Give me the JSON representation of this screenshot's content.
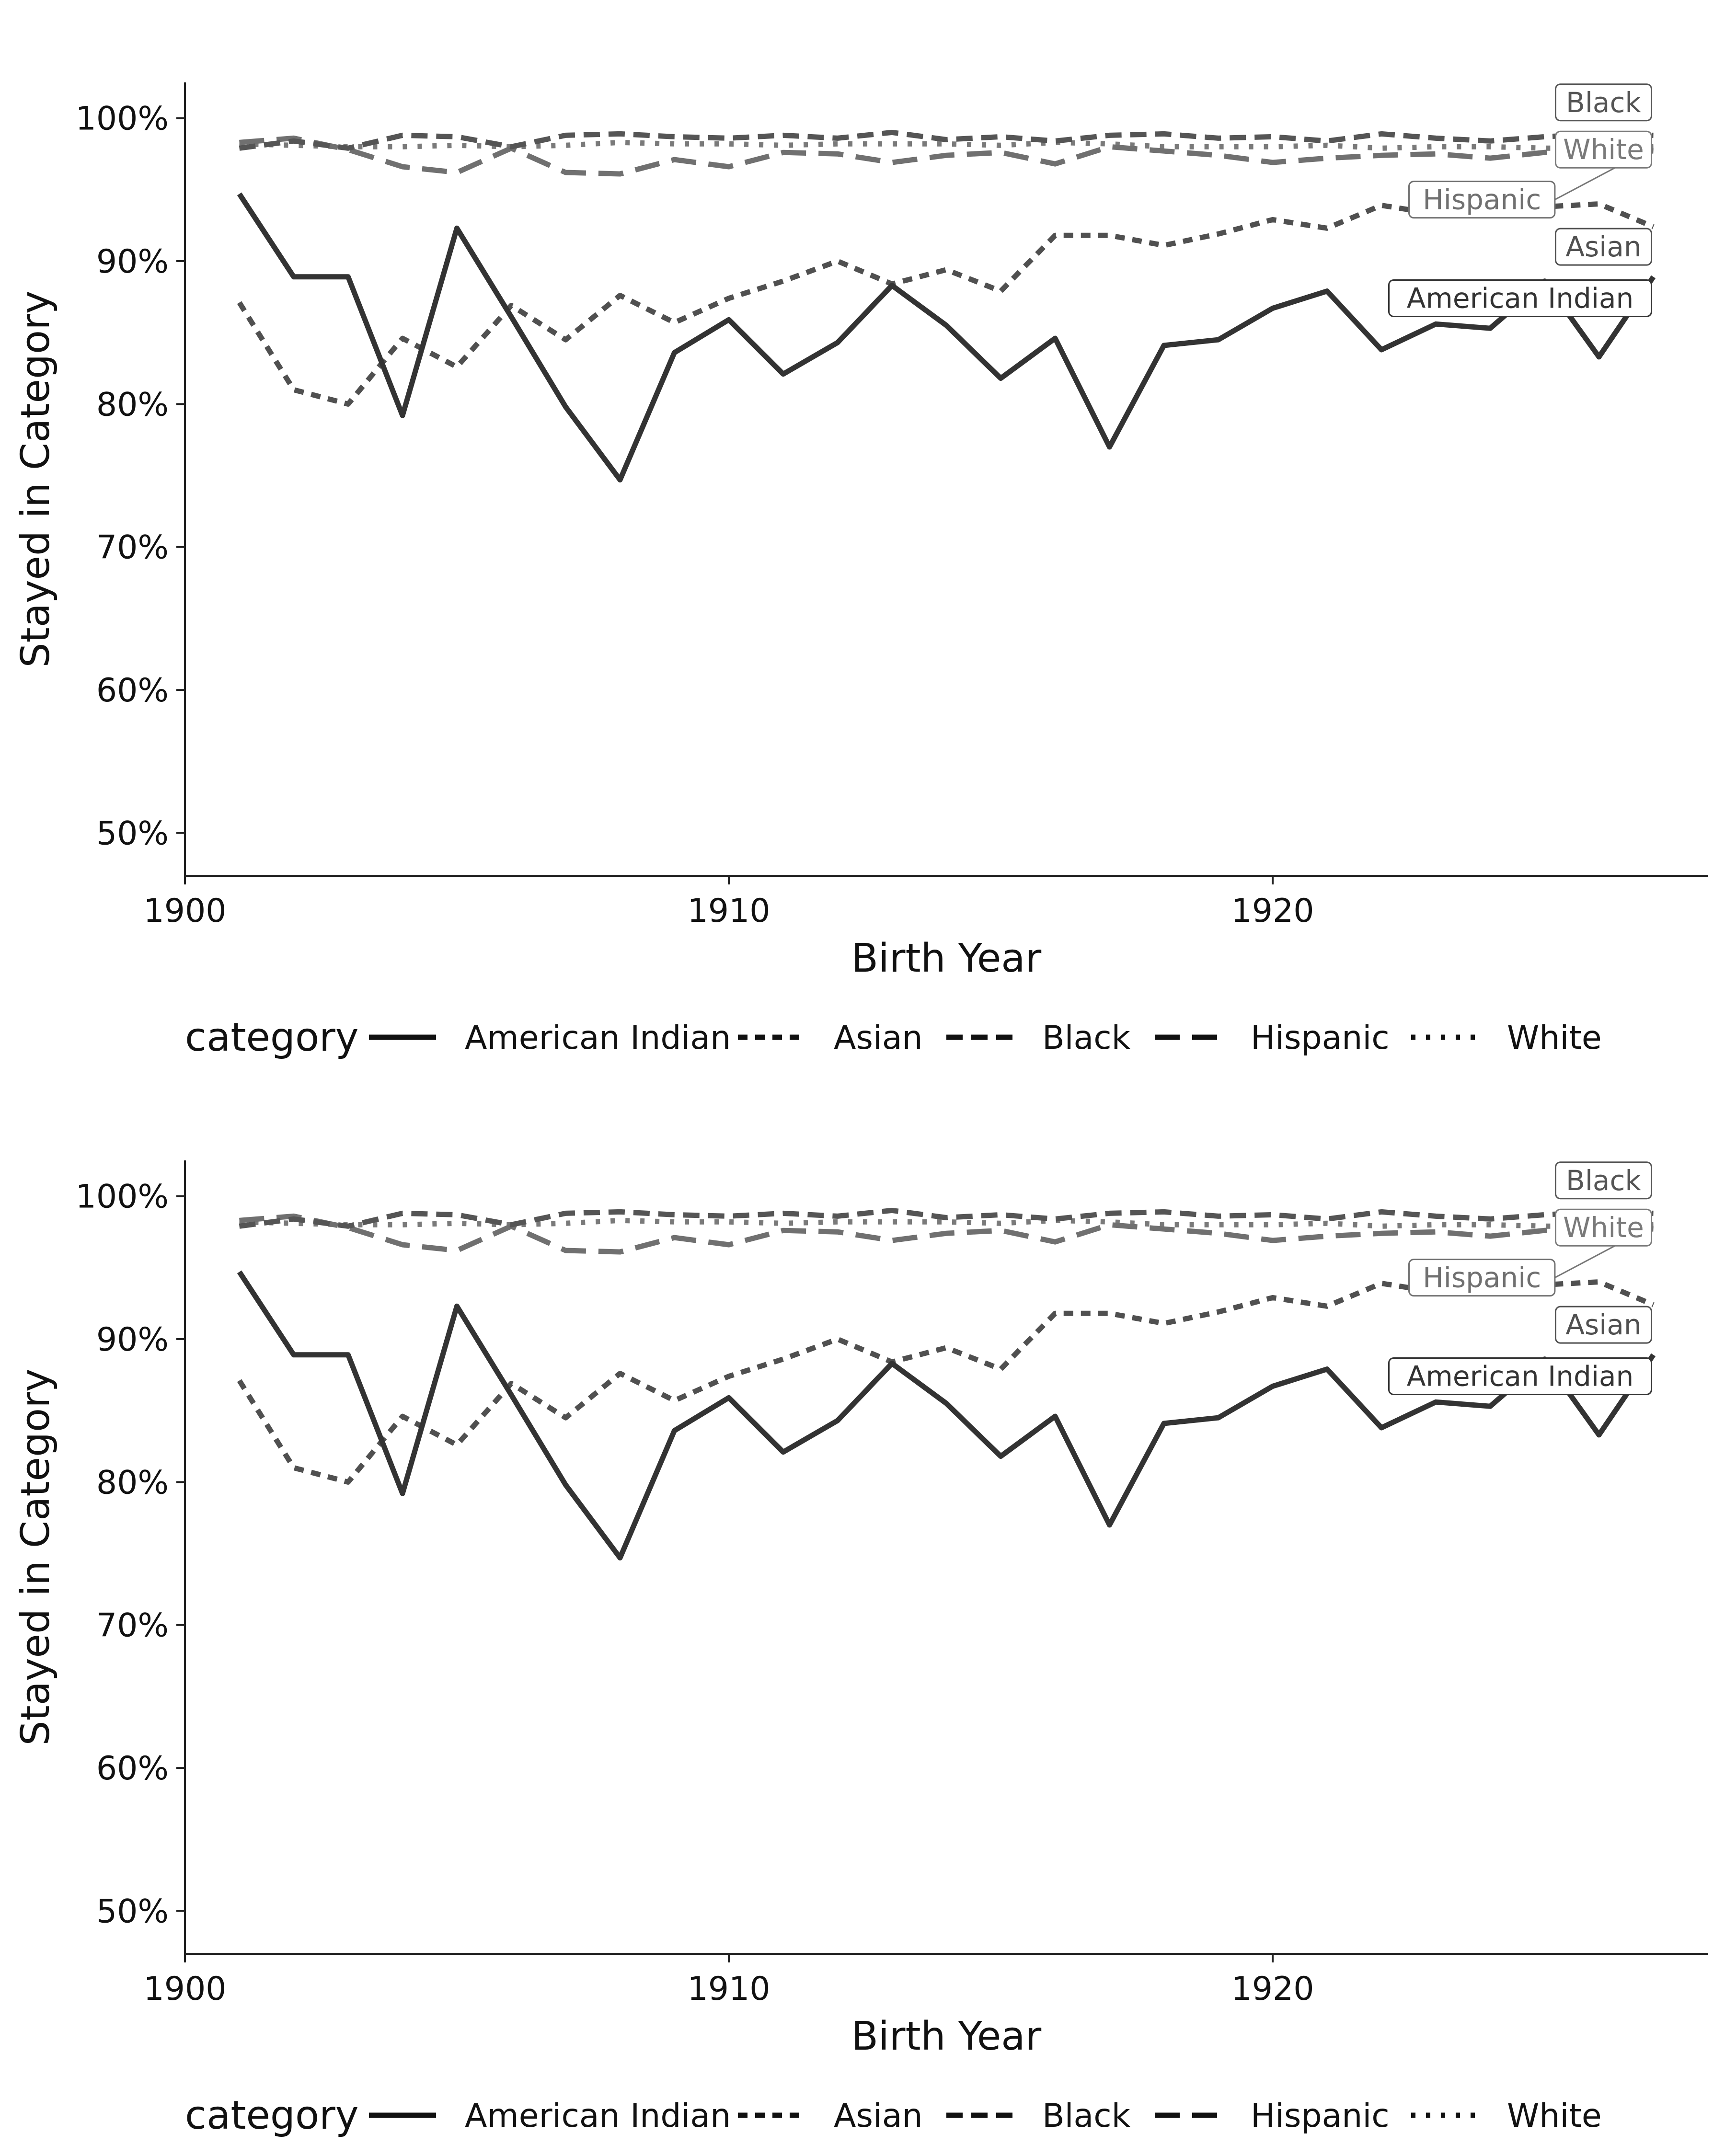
{
  "chart_data": [
    {
      "type": "line",
      "title": "",
      "xlabel": "Birth Year",
      "ylabel": "Stayed in Category",
      "xlim": [
        1900,
        1928
      ],
      "ylim": [
        47,
        102.5
      ],
      "x_ticks": [
        1900,
        1910,
        1920
      ],
      "x_tick_labels": [
        "1900",
        "1910",
        "1920"
      ],
      "y_ticks": [
        50,
        60,
        70,
        80,
        90,
        100
      ],
      "y_tick_labels": [
        "50%",
        "60%",
        "70%",
        "80%",
        "90%",
        "100%"
      ],
      "grid": false,
      "legend": {
        "title": "category",
        "placement": "bottom",
        "entries": [
          "American Indian",
          "Asian",
          "Black",
          "Hispanic",
          "White"
        ]
      },
      "x": [
        1901,
        1902,
        1903,
        1904,
        1905,
        1906,
        1907,
        1908,
        1909,
        1910,
        1911,
        1912,
        1913,
        1914,
        1915,
        1916,
        1917,
        1918,
        1919,
        1920,
        1921,
        1922,
        1923,
        1924,
        1925,
        1926,
        1927
      ],
      "series": [
        {
          "name": "American Indian",
          "color": "#333333",
          "dash": "solid",
          "label": "American Indian",
          "values": [
            94.7,
            88.9,
            88.9,
            79.2,
            92.3,
            86.1,
            79.8,
            74.7,
            83.6,
            85.9,
            82.1,
            84.3,
            88.3,
            85.5,
            81.8,
            84.6,
            77.0,
            84.1,
            84.5,
            86.7,
            87.9,
            83.8,
            85.6,
            85.3,
            88.6,
            83.3,
            88.9
          ]
        },
        {
          "name": "Asian",
          "color": "#505050",
          "dash": "dotted-long",
          "label": "Asian",
          "values": [
            87.1,
            81.0,
            80.0,
            84.6,
            82.6,
            86.9,
            84.5,
            87.6,
            85.7,
            87.4,
            88.6,
            90.0,
            88.4,
            89.4,
            87.9,
            91.8,
            91.8,
            91.1,
            91.9,
            92.9,
            92.3,
            93.9,
            93.3,
            93.7,
            93.8,
            94.0,
            92.4
          ]
        },
        {
          "name": "Black",
          "color": "#555555",
          "dash": "dashed",
          "label": "Black",
          "values": [
            97.9,
            98.4,
            97.9,
            98.8,
            98.7,
            98.0,
            98.8,
            98.9,
            98.7,
            98.6,
            98.8,
            98.6,
            99.0,
            98.5,
            98.7,
            98.4,
            98.8,
            98.9,
            98.6,
            98.7,
            98.4,
            98.9,
            98.6,
            98.4,
            98.7,
            98.9,
            98.8
          ]
        },
        {
          "name": "Hispanic",
          "color": "#707070",
          "dash": "long-dash",
          "label": "Hispanic",
          "values": [
            98.3,
            98.6,
            97.8,
            96.6,
            96.2,
            97.9,
            96.2,
            96.1,
            97.1,
            96.6,
            97.6,
            97.5,
            96.9,
            97.4,
            97.6,
            96.8,
            98.0,
            97.7,
            97.4,
            96.9,
            97.2,
            97.4,
            97.5,
            97.2,
            97.6,
            97.9,
            97.7
          ]
        },
        {
          "name": "White",
          "color": "#7a7a7a",
          "dash": "dotted",
          "label": "White",
          "values": [
            98.2,
            98.1,
            98.0,
            98.0,
            98.1,
            98.0,
            98.1,
            98.3,
            98.2,
            98.2,
            98.1,
            98.2,
            98.2,
            98.2,
            98.1,
            98.3,
            98.2,
            98.0,
            98.0,
            98.0,
            98.1,
            97.9,
            98.0,
            98.0,
            97.9,
            97.9,
            98.0
          ]
        }
      ]
    },
    {
      "type": "line",
      "title": "",
      "xlabel": "Birth Year",
      "ylabel": "Stayed in Category",
      "xlim": [
        1900,
        1928
      ],
      "ylim": [
        47,
        102.5
      ],
      "x_ticks": [
        1900,
        1910,
        1920
      ],
      "x_tick_labels": [
        "1900",
        "1910",
        "1920"
      ],
      "y_ticks": [
        50,
        60,
        70,
        80,
        90,
        100
      ],
      "y_tick_labels": [
        "50%",
        "60%",
        "70%",
        "80%",
        "90%",
        "100%"
      ],
      "grid": false,
      "legend": {
        "title": "category",
        "placement": "bottom",
        "entries": [
          "American Indian",
          "Asian",
          "Black",
          "Hispanic",
          "White"
        ]
      },
      "x": [
        1901,
        1902,
        1903,
        1904,
        1905,
        1906,
        1907,
        1908,
        1909,
        1910,
        1911,
        1912,
        1913,
        1914,
        1915,
        1916,
        1917,
        1918,
        1919,
        1920,
        1921,
        1922,
        1923,
        1924,
        1925,
        1926,
        1927
      ],
      "series": [
        {
          "name": "American Indian",
          "color": "#333333",
          "dash": "solid",
          "label": "American Indian",
          "values": [
            94.7,
            88.9,
            88.9,
            79.2,
            92.3,
            86.1,
            79.8,
            74.7,
            83.6,
            85.9,
            82.1,
            84.3,
            88.3,
            85.5,
            81.8,
            84.6,
            77.0,
            84.1,
            84.5,
            86.7,
            87.9,
            83.8,
            85.6,
            85.3,
            88.6,
            83.3,
            88.9
          ]
        },
        {
          "name": "Asian",
          "color": "#505050",
          "dash": "dotted-long",
          "label": "Asian",
          "values": [
            87.1,
            81.0,
            80.0,
            84.6,
            82.6,
            86.9,
            84.5,
            87.6,
            85.7,
            87.4,
            88.6,
            90.0,
            88.4,
            89.4,
            87.9,
            91.8,
            91.8,
            91.1,
            91.9,
            92.9,
            92.3,
            93.9,
            93.3,
            93.7,
            93.8,
            94.0,
            92.4
          ]
        },
        {
          "name": "Black",
          "color": "#555555",
          "dash": "dashed",
          "label": "Black",
          "values": [
            97.9,
            98.4,
            97.9,
            98.8,
            98.7,
            98.0,
            98.8,
            98.9,
            98.7,
            98.6,
            98.8,
            98.6,
            99.0,
            98.5,
            98.7,
            98.4,
            98.8,
            98.9,
            98.6,
            98.7,
            98.4,
            98.9,
            98.6,
            98.4,
            98.7,
            98.9,
            98.8
          ]
        },
        {
          "name": "Hispanic",
          "color": "#707070",
          "dash": "long-dash",
          "label": "Hispanic",
          "values": [
            98.3,
            98.6,
            97.8,
            96.6,
            96.2,
            97.9,
            96.2,
            96.1,
            97.1,
            96.6,
            97.6,
            97.5,
            96.9,
            97.4,
            97.6,
            96.8,
            98.0,
            97.7,
            97.4,
            96.9,
            97.2,
            97.4,
            97.5,
            97.2,
            97.6,
            97.9,
            97.7
          ]
        },
        {
          "name": "White",
          "color": "#7a7a7a",
          "dash": "dotted",
          "label": "White",
          "values": [
            98.2,
            98.1,
            98.0,
            98.0,
            98.1,
            98.0,
            98.1,
            98.3,
            98.2,
            98.2,
            98.1,
            98.2,
            98.2,
            98.2,
            98.1,
            98.3,
            98.2,
            98.0,
            98.0,
            98.0,
            98.1,
            97.9,
            98.0,
            98.0,
            97.9,
            97.9,
            98.0
          ]
        }
      ]
    }
  ]
}
